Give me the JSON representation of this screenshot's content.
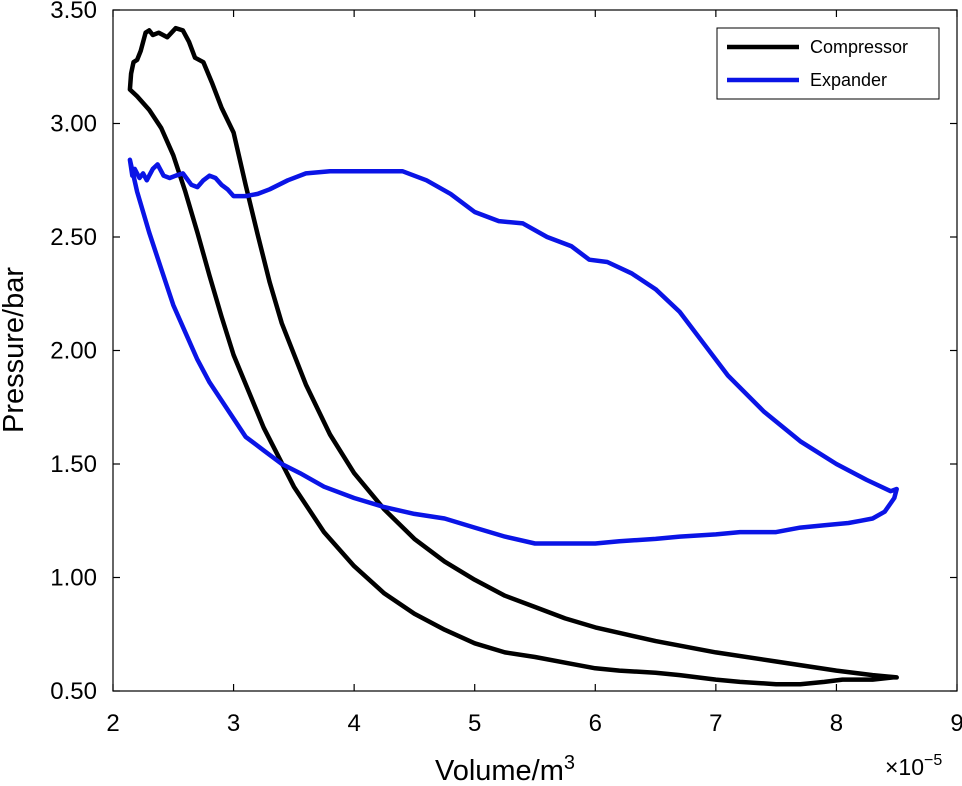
{
  "chart_data": {
    "type": "line",
    "xlabel": "Volume/m",
    "xlabel_superscript": "3",
    "ylabel": "Pressure/bar",
    "x_exponent_label": "×10",
    "x_exponent_superscript": "−5",
    "xlim": [
      2,
      9
    ],
    "ylim": [
      0.5,
      3.5
    ],
    "x_ticks": [
      2,
      3,
      4,
      5,
      6,
      7,
      8,
      9
    ],
    "x_tick_labels": [
      "2",
      "3",
      "4",
      "5",
      "6",
      "7",
      "8",
      "9"
    ],
    "y_ticks": [
      0.5,
      1.0,
      1.5,
      2.0,
      2.5,
      3.0,
      3.5
    ],
    "y_tick_labels": [
      "0.50",
      "1.00",
      "1.50",
      "2.00",
      "2.50",
      "3.00",
      "3.50"
    ],
    "grid": false,
    "legend_position": "top-right",
    "series": [
      {
        "name": "Compressor",
        "color": "#000000",
        "x": [
          2.14,
          2.15,
          2.17,
          2.2,
          2.23,
          2.27,
          2.3,
          2.33,
          2.38,
          2.45,
          2.52,
          2.58,
          2.63,
          2.68,
          2.75,
          2.82,
          2.9,
          3.0,
          3.1,
          3.2,
          3.3,
          3.4,
          3.6,
          3.8,
          4.0,
          4.25,
          4.5,
          4.75,
          5.0,
          5.25,
          5.5,
          5.75,
          6.0,
          6.5,
          7.0,
          7.5,
          8.0,
          8.3,
          8.5,
          8.47,
          8.3,
          8.05,
          7.9,
          7.7,
          7.5,
          7.2,
          7.0,
          6.7,
          6.5,
          6.2,
          6.0,
          5.8,
          5.5,
          5.25,
          5.0,
          4.75,
          4.5,
          4.25,
          4.0,
          3.75,
          3.5,
          3.25,
          3.0,
          2.9,
          2.8,
          2.7,
          2.6,
          2.5,
          2.4,
          2.3,
          2.2,
          2.14
        ],
        "y": [
          3.15,
          3.22,
          3.27,
          3.28,
          3.32,
          3.4,
          3.41,
          3.39,
          3.4,
          3.38,
          3.42,
          3.41,
          3.36,
          3.29,
          3.27,
          3.18,
          3.07,
          2.96,
          2.73,
          2.51,
          2.3,
          2.12,
          1.85,
          1.63,
          1.46,
          1.3,
          1.17,
          1.07,
          0.99,
          0.92,
          0.87,
          0.82,
          0.78,
          0.72,
          0.67,
          0.63,
          0.59,
          0.57,
          0.56,
          0.56,
          0.55,
          0.55,
          0.54,
          0.53,
          0.53,
          0.54,
          0.55,
          0.57,
          0.58,
          0.59,
          0.6,
          0.62,
          0.65,
          0.67,
          0.71,
          0.77,
          0.84,
          0.93,
          1.05,
          1.2,
          1.4,
          1.66,
          1.98,
          2.15,
          2.33,
          2.52,
          2.7,
          2.86,
          2.98,
          3.06,
          3.12,
          3.15
        ]
      },
      {
        "name": "Expander",
        "color": "#0a14e6",
        "x": [
          2.14,
          2.16,
          2.18,
          2.22,
          2.25,
          2.28,
          2.3,
          2.33,
          2.37,
          2.42,
          2.47,
          2.52,
          2.58,
          2.65,
          2.7,
          2.75,
          2.8,
          2.85,
          2.9,
          2.95,
          3.0,
          3.1,
          3.2,
          3.3,
          3.45,
          3.6,
          3.8,
          4.0,
          4.2,
          4.4,
          4.6,
          4.8,
          5.0,
          5.2,
          5.4,
          5.6,
          5.8,
          5.95,
          6.1,
          6.3,
          6.5,
          6.7,
          6.9,
          7.1,
          7.4,
          7.7,
          8.0,
          8.25,
          8.45,
          8.5,
          8.48,
          8.4,
          8.3,
          8.2,
          8.1,
          7.9,
          7.7,
          7.5,
          7.2,
          7.0,
          6.7,
          6.5,
          6.2,
          6.0,
          5.8,
          5.5,
          5.25,
          5.0,
          4.75,
          4.5,
          4.25,
          4.0,
          3.75,
          3.55,
          3.4,
          3.25,
          3.1,
          3.0,
          2.9,
          2.8,
          2.7,
          2.6,
          2.5,
          2.4,
          2.3,
          2.2,
          2.14
        ],
        "y": [
          2.84,
          2.77,
          2.8,
          2.76,
          2.78,
          2.75,
          2.77,
          2.8,
          2.82,
          2.77,
          2.76,
          2.77,
          2.78,
          2.73,
          2.72,
          2.75,
          2.77,
          2.76,
          2.73,
          2.71,
          2.68,
          2.68,
          2.69,
          2.71,
          2.75,
          2.78,
          2.79,
          2.79,
          2.79,
          2.79,
          2.75,
          2.69,
          2.61,
          2.57,
          2.56,
          2.5,
          2.46,
          2.4,
          2.39,
          2.34,
          2.27,
          2.17,
          2.03,
          1.89,
          1.73,
          1.6,
          1.5,
          1.43,
          1.38,
          1.39,
          1.35,
          1.29,
          1.26,
          1.25,
          1.24,
          1.23,
          1.22,
          1.2,
          1.2,
          1.19,
          1.18,
          1.17,
          1.16,
          1.15,
          1.15,
          1.15,
          1.18,
          1.22,
          1.26,
          1.28,
          1.31,
          1.35,
          1.4,
          1.46,
          1.5,
          1.56,
          1.62,
          1.7,
          1.78,
          1.86,
          1.96,
          2.08,
          2.2,
          2.36,
          2.52,
          2.7,
          2.84
        ]
      }
    ]
  }
}
